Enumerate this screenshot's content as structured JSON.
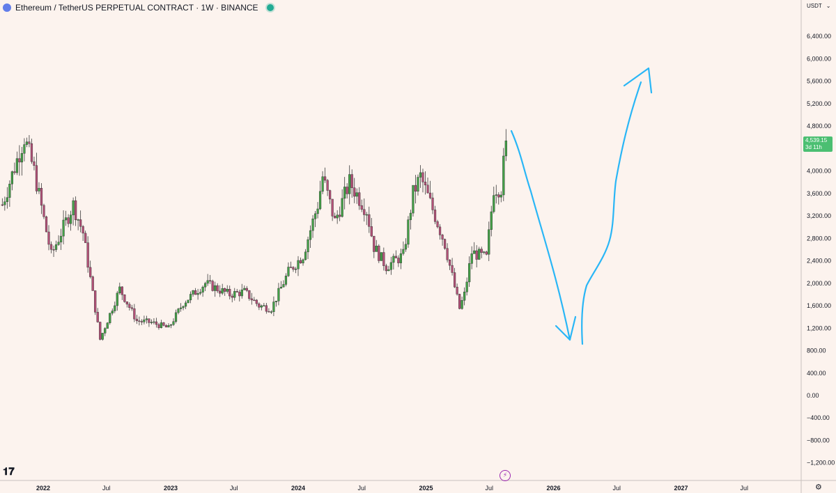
{
  "header": {
    "symbol": "Ethereum / TetherUS PERPETUAL CONTRACT · 1W · BINANCE"
  },
  "axis": {
    "currency": "USDT",
    "dropdown": "⌄"
  },
  "last_price": {
    "value": "4,539.15",
    "countdown": "3d 11h"
  },
  "colors": {
    "background": "#fcf3ee",
    "up": "#43a047",
    "down": "#b25077",
    "drawing": "#29b6f6",
    "price_tag": "#4bbf72"
  },
  "icons": {
    "logo": "tradingview-logo-icon",
    "bolt": "lightning-icon",
    "settings": "gear-icon"
  },
  "chart_data": {
    "type": "candlestick",
    "ylim": [
      -1300,
      6700
    ],
    "y_ticks": [
      "6,400.00",
      "6,000.00",
      "5,600.00",
      "5,200.00",
      "4,800.00",
      "4,000.00",
      "3,600.00",
      "3,200.00",
      "2,800.00",
      "2,400.00",
      "2,000.00",
      "1,600.00",
      "1,200.00",
      "800.00",
      "400.00",
      "0.00",
      "−400.00",
      "−800.00",
      "−1,200.00"
    ],
    "x_ticks": [
      {
        "label": "2022",
        "bold": true
      },
      {
        "label": "Jul",
        "bold": false
      },
      {
        "label": "2023",
        "bold": true
      },
      {
        "label": "Jul",
        "bold": false
      },
      {
        "label": "2024",
        "bold": true
      },
      {
        "label": "Jul",
        "bold": false
      },
      {
        "label": "2025",
        "bold": true
      },
      {
        "label": "Jul",
        "bold": false
      },
      {
        "label": "2026",
        "bold": true
      },
      {
        "label": "Jul",
        "bold": false
      },
      {
        "label": "2027",
        "bold": true
      },
      {
        "label": "Jul",
        "bold": false
      }
    ],
    "series": [
      {
        "name": "ETHUSDT",
        "anchors": [
          {
            "date": "2021-09-06",
            "close": 3400
          },
          {
            "date": "2021-11-08",
            "close": 4600
          },
          {
            "date": "2021-12-06",
            "close": 4000
          },
          {
            "date": "2022-01-24",
            "close": 2500
          },
          {
            "date": "2022-03-28",
            "close": 3400
          },
          {
            "date": "2022-04-25",
            "close": 2900
          },
          {
            "date": "2022-06-13",
            "close": 1000
          },
          {
            "date": "2022-08-08",
            "close": 1900
          },
          {
            "date": "2022-09-26",
            "close": 1330
          },
          {
            "date": "2022-11-07",
            "close": 1300
          },
          {
            "date": "2022-12-26",
            "close": 1200
          },
          {
            "date": "2023-02-06",
            "close": 1650
          },
          {
            "date": "2023-04-10",
            "close": 2000
          },
          {
            "date": "2023-06-19",
            "close": 1800
          },
          {
            "date": "2023-07-31",
            "close": 1850
          },
          {
            "date": "2023-09-11",
            "close": 1600
          },
          {
            "date": "2023-10-16",
            "close": 1550
          },
          {
            "date": "2023-12-04",
            "close": 2200
          },
          {
            "date": "2024-01-15",
            "close": 2500
          },
          {
            "date": "2024-02-26",
            "close": 3400
          },
          {
            "date": "2024-03-11",
            "close": 3900
          },
          {
            "date": "2024-04-15",
            "close": 3100
          },
          {
            "date": "2024-05-27",
            "close": 3800
          },
          {
            "date": "2024-07-15",
            "close": 3300
          },
          {
            "date": "2024-08-05",
            "close": 2650
          },
          {
            "date": "2024-09-09",
            "close": 2300
          },
          {
            "date": "2024-10-28",
            "close": 2500
          },
          {
            "date": "2024-11-25",
            "close": 3600
          },
          {
            "date": "2024-12-16",
            "close": 3900
          },
          {
            "date": "2025-01-27",
            "close": 3200
          },
          {
            "date": "2025-02-24",
            "close": 2700
          },
          {
            "date": "2025-04-07",
            "close": 1550
          },
          {
            "date": "2025-04-21",
            "close": 1800
          },
          {
            "date": "2025-05-12",
            "close": 2550
          },
          {
            "date": "2025-06-23",
            "close": 2450
          },
          {
            "date": "2025-07-14",
            "close": 3700
          },
          {
            "date": "2025-08-04",
            "close": 3700
          },
          {
            "date": "2025-08-18",
            "close": 4539
          }
        ]
      }
    ]
  }
}
